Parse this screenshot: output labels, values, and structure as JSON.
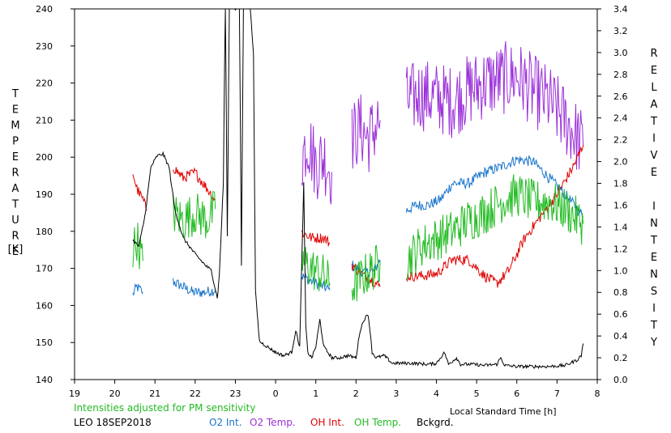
{
  "chart_data": {
    "type": "line",
    "xlabel": "Local Standard Time [h]",
    "ylabel_left": [
      "T",
      "E",
      "M",
      "P",
      "E",
      "R",
      "A",
      "T",
      "U",
      "R",
      "E",
      "",
      "[K]"
    ],
    "ylabel_right": [
      "R",
      "E",
      "L",
      "A",
      "T",
      "I",
      "V",
      "E",
      "",
      "I",
      "N",
      "T",
      "E",
      "N",
      "S",
      "I",
      "T",
      "Y"
    ],
    "x_ticks": [
      "19",
      "20",
      "21",
      "22",
      "23",
      "0",
      "1",
      "2",
      "3",
      "4",
      "5",
      "6",
      "7",
      "8"
    ],
    "xlim": [
      19,
      32
    ],
    "y_left_ticks": [
      "140",
      "150",
      "160",
      "170",
      "180",
      "190",
      "200",
      "210",
      "220",
      "230",
      "240"
    ],
    "ylim_left": [
      140,
      240
    ],
    "y_right_ticks": [
      "0.0",
      "0.2",
      "0.4",
      "0.6",
      "0.8",
      "1.0",
      "1.2",
      "1.4",
      "1.6",
      "1.8",
      "2.0",
      "2.2",
      "2.4",
      "2.6",
      "2.8",
      "3.0",
      "3.2",
      "3.4"
    ],
    "ylim_right": [
      0,
      3.4
    ],
    "note": "Intensities adjusted for PM sensitivity",
    "station_date": "LEO 18SEP2018",
    "colors": {
      "o2_int": "#1874cd",
      "o2_temp": "#9b30d9",
      "oh_int": "#e00000",
      "oh_temp": "#22bb22",
      "bckgrd": "#000000",
      "note": "#22bb22"
    },
    "series": [
      {
        "name": "O2 Int.",
        "axis": "right",
        "color": "#1874cd",
        "noise": 0.05,
        "segments": [
          [
            [
              20.45,
              0.78
            ],
            [
              20.55,
              0.85
            ],
            [
              20.7,
              0.8
            ]
          ],
          [
            [
              21.45,
              0.9
            ],
            [
              21.7,
              0.85
            ],
            [
              21.95,
              0.8
            ],
            [
              22.2,
              0.8
            ],
            [
              22.5,
              0.82
            ]
          ],
          [
            [
              24.65,
              0.95
            ],
            [
              24.9,
              0.9
            ],
            [
              25.2,
              0.85
            ],
            [
              25.35,
              0.82
            ]
          ],
          [
            [
              25.9,
              1.05
            ],
            [
              26.2,
              0.98
            ],
            [
              26.45,
              1.0
            ],
            [
              26.6,
              1.1
            ]
          ],
          [
            [
              27.25,
              1.55
            ],
            [
              27.5,
              1.6
            ],
            [
              27.8,
              1.6
            ],
            [
              28.1,
              1.65
            ],
            [
              28.4,
              1.8
            ],
            [
              28.8,
              1.8
            ],
            [
              29.2,
              1.9
            ],
            [
              29.6,
              1.95
            ],
            [
              30.0,
              2.02
            ],
            [
              30.4,
              2.0
            ],
            [
              30.8,
              1.85
            ],
            [
              31.2,
              1.7
            ],
            [
              31.65,
              1.5
            ]
          ]
        ]
      },
      {
        "name": "O2 Temp.",
        "axis": "left",
        "color": "#9b30d9",
        "noise": 10,
        "segments": [
          [
            [
              24.65,
              200
            ],
            [
              24.8,
              205
            ],
            [
              25.0,
              198
            ],
            [
              25.2,
              200
            ],
            [
              25.4,
              196
            ]
          ],
          [
            [
              25.9,
              205
            ],
            [
              26.1,
              208
            ],
            [
              26.3,
              205
            ],
            [
              26.6,
              210
            ]
          ],
          [
            [
              27.25,
              215
            ],
            [
              27.6,
              217
            ],
            [
              28.0,
              216
            ],
            [
              28.4,
              215
            ],
            [
              28.8,
              218
            ],
            [
              29.2,
              220
            ],
            [
              29.6,
              221
            ],
            [
              30.0,
              222
            ],
            [
              30.4,
              218
            ],
            [
              30.8,
              215
            ],
            [
              31.2,
              210
            ],
            [
              31.65,
              203
            ]
          ]
        ]
      },
      {
        "name": "OH Int.",
        "axis": "right",
        "color": "#e00000",
        "noise": 0.05,
        "segments": [
          [
            [
              20.45,
              1.9
            ],
            [
              20.55,
              1.75
            ],
            [
              20.7,
              1.65
            ],
            [
              20.8,
              1.55
            ]
          ],
          [
            [
              21.45,
              1.95
            ],
            [
              21.7,
              1.85
            ],
            [
              22.0,
              1.9
            ],
            [
              22.3,
              1.75
            ],
            [
              22.5,
              1.65
            ]
          ],
          [
            [
              24.65,
              1.35
            ],
            [
              24.9,
              1.3
            ],
            [
              25.2,
              1.3
            ],
            [
              25.35,
              1.25
            ]
          ],
          [
            [
              25.9,
              1.05
            ],
            [
              26.2,
              0.95
            ],
            [
              26.45,
              0.9
            ],
            [
              26.6,
              0.85
            ]
          ],
          [
            [
              27.25,
              0.95
            ],
            [
              27.6,
              0.95
            ],
            [
              28.0,
              0.97
            ],
            [
              28.4,
              1.1
            ],
            [
              28.8,
              1.1
            ],
            [
              29.2,
              0.95
            ],
            [
              29.5,
              0.88
            ],
            [
              29.8,
              1.0
            ],
            [
              30.2,
              1.3
            ],
            [
              30.6,
              1.5
            ],
            [
              31.0,
              1.7
            ],
            [
              31.4,
              1.95
            ],
            [
              31.65,
              2.15
            ]
          ]
        ]
      },
      {
        "name": "OH Temp.",
        "axis": "left",
        "color": "#22bb22",
        "noise": 6,
        "segments": [
          [
            [
              20.45,
              175
            ],
            [
              20.55,
              178
            ],
            [
              20.7,
              172
            ]
          ],
          [
            [
              21.45,
              185
            ],
            [
              21.7,
              183
            ],
            [
              22.0,
              185
            ],
            [
              22.3,
              183
            ],
            [
              22.5,
              186
            ]
          ],
          [
            [
              24.65,
              172
            ],
            [
              24.9,
              170
            ],
            [
              25.2,
              168
            ],
            [
              25.35,
              166
            ]
          ],
          [
            [
              25.9,
              165
            ],
            [
              26.2,
              168
            ],
            [
              26.45,
              170
            ],
            [
              26.6,
              172
            ]
          ],
          [
            [
              27.25,
              172
            ],
            [
              27.6,
              176
            ],
            [
              28.0,
              178
            ],
            [
              28.4,
              180
            ],
            [
              28.8,
              183
            ],
            [
              29.2,
              185
            ],
            [
              29.6,
              188
            ],
            [
              30.0,
              190
            ],
            [
              30.4,
              188
            ],
            [
              30.8,
              188
            ],
            [
              31.2,
              186
            ],
            [
              31.65,
              182
            ]
          ]
        ]
      },
      {
        "name": "Bckgrd.",
        "axis": "right",
        "color": "#000000",
        "noise": 0.015,
        "segments": [
          [
            [
              20.45,
              1.28
            ],
            [
              20.6,
              1.22
            ],
            [
              20.75,
              1.5
            ],
            [
              20.9,
              1.95
            ],
            [
              21.05,
              2.05
            ],
            [
              21.2,
              2.07
            ],
            [
              21.35,
              1.95
            ],
            [
              21.5,
              1.55
            ],
            [
              21.7,
              1.3
            ],
            [
              22.0,
              1.15
            ],
            [
              22.25,
              1.05
            ],
            [
              22.4,
              1.0
            ],
            [
              22.55,
              0.75
            ],
            [
              22.6,
              0.95
            ],
            [
              22.7,
              1.8
            ],
            [
              22.75,
              3.5
            ],
            [
              22.8,
              1.3
            ],
            [
              22.85,
              3.5
            ],
            [
              23.0,
              3.4
            ],
            [
              23.1,
              3.5
            ],
            [
              23.15,
              1.05
            ],
            [
              23.2,
              3.5
            ],
            [
              23.35,
              3.5
            ],
            [
              23.45,
              3.0
            ],
            [
              23.5,
              0.8
            ],
            [
              23.6,
              0.35
            ],
            [
              23.8,
              0.3
            ],
            [
              24.0,
              0.25
            ],
            [
              24.2,
              0.22
            ],
            [
              24.4,
              0.25
            ],
            [
              24.5,
              0.45
            ],
            [
              24.6,
              0.3
            ],
            [
              24.7,
              1.8
            ],
            [
              24.75,
              0.5
            ],
            [
              24.8,
              0.25
            ],
            [
              24.9,
              0.2
            ],
            [
              25.0,
              0.3
            ],
            [
              25.1,
              0.55
            ],
            [
              25.2,
              0.3
            ],
            [
              25.3,
              0.25
            ],
            [
              25.4,
              0.2
            ],
            [
              25.6,
              0.2
            ],
            [
              25.8,
              0.22
            ],
            [
              26.0,
              0.2
            ],
            [
              26.1,
              0.45
            ],
            [
              26.2,
              0.55
            ],
            [
              26.3,
              0.6
            ],
            [
              26.35,
              0.45
            ],
            [
              26.4,
              0.25
            ],
            [
              26.5,
              0.2
            ],
            [
              26.7,
              0.22
            ],
            [
              26.9,
              0.15
            ],
            [
              27.1,
              0.15
            ],
            [
              27.4,
              0.15
            ],
            [
              27.8,
              0.14
            ],
            [
              28.0,
              0.15
            ],
            [
              28.2,
              0.25
            ],
            [
              28.3,
              0.14
            ],
            [
              28.5,
              0.2
            ],
            [
              28.6,
              0.14
            ],
            [
              28.9,
              0.14
            ],
            [
              29.2,
              0.13
            ],
            [
              29.5,
              0.14
            ],
            [
              29.6,
              0.2
            ],
            [
              29.7,
              0.13
            ],
            [
              30.0,
              0.12
            ],
            [
              30.4,
              0.12
            ],
            [
              30.8,
              0.12
            ],
            [
              31.2,
              0.13
            ],
            [
              31.5,
              0.18
            ],
            [
              31.6,
              0.22
            ],
            [
              31.65,
              0.33
            ]
          ]
        ]
      }
    ]
  }
}
